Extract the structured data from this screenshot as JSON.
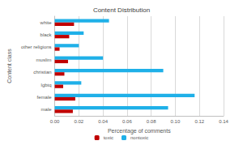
{
  "chart_data": {
    "type": "bar",
    "orientation": "horizontal",
    "title": "Content Distribution",
    "x_label": "Percentage of comments",
    "y_label": "Content class",
    "categories": [
      "male",
      "female",
      "lgbtq",
      "christian",
      "muslim",
      "other religions",
      "black",
      "white"
    ],
    "series": [
      {
        "name": "toxic",
        "color": "#c00000",
        "values": [
          0.015,
          0.017,
          0.007,
          0.008,
          0.011,
          0.004,
          0.012,
          0.016
        ]
      },
      {
        "name": "nontoxic",
        "color": "#1fb0e8",
        "values": [
          0.094,
          0.116,
          0.022,
          0.09,
          0.04,
          0.02,
          0.024,
          0.045
        ]
      }
    ],
    "xlim": [
      0,
      0.14
    ],
    "xticks": [
      {
        "value": 0,
        "label": "0.00"
      },
      {
        "value": 0.02,
        "label": "0.02"
      },
      {
        "value": 0.04,
        "label": "0.04"
      },
      {
        "value": 0.06,
        "label": "0.06"
      },
      {
        "value": 0.08,
        "label": "0.08"
      },
      {
        "value": 0.1,
        "label": "0.10"
      },
      {
        "value": 0.12,
        "label": "0.12"
      },
      {
        "value": 0.14,
        "label": "0.14"
      }
    ],
    "grid": true,
    "legend": "bottom"
  }
}
